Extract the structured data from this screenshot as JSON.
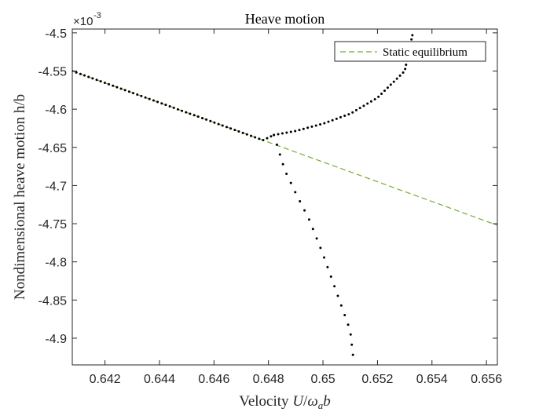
{
  "chart_data": {
    "type": "scatter",
    "title": "Heave motion",
    "xlabel_prefix": "Velocity ",
    "xlabel_math": {
      "U": "U",
      "slash": "/",
      "omega": "ω",
      "sub": "a",
      "b": "b"
    },
    "ylabel": "Nondimensional heave motion h/b",
    "y_exponent": {
      "base": "×10",
      "power": "-3"
    },
    "xlim": [
      0.6408,
      0.6564
    ],
    "ylim": [
      -4.935,
      -4.495
    ],
    "x_ticks": [
      0.642,
      0.644,
      0.646,
      0.648,
      0.65,
      0.652,
      0.654,
      0.656
    ],
    "x_tick_labels": [
      "0.642",
      "0.644",
      "0.646",
      "0.648",
      "0.65",
      "0.652",
      "0.654",
      "0.656"
    ],
    "y_ticks": [
      -4.5,
      -4.55,
      -4.6,
      -4.65,
      -4.7,
      -4.75,
      -4.8,
      -4.85,
      -4.9
    ],
    "y_tick_labels": [
      "-4.5",
      "-4.55",
      "-4.6",
      "-4.65",
      "-4.7",
      "-4.75",
      "-4.8",
      "-4.85",
      "-4.9"
    ],
    "grid": false,
    "legend_position": "top-right",
    "series": [
      {
        "name": "Static equilibrium",
        "style": "dashed",
        "color": "#77ac30",
        "x": [
          0.6408,
          0.6564
        ],
        "y": [
          -4.55,
          -4.752
        ]
      },
      {
        "style": "dotted",
        "color": "#000000",
        "x": [
          0.6408,
          0.6418,
          0.6428,
          0.6438,
          0.6448,
          0.6458,
          0.6468,
          0.6478,
          0.6482
        ],
        "y": [
          -4.55,
          -4.5629,
          -4.5759,
          -4.5888,
          -4.6018,
          -4.6147,
          -4.6277,
          -4.6406,
          -4.6338
        ]
      },
      {
        "style": "dotted",
        "color": "#000000",
        "x": [
          0.6482,
          0.649,
          0.65,
          0.651,
          0.652,
          0.653,
          0.6533
        ],
        "y": [
          -4.6338,
          -4.6285,
          -4.619,
          -4.606,
          -4.585,
          -4.55,
          -4.5
        ]
      },
      {
        "style": "dotted",
        "color": "#000000",
        "x": [
          0.6482,
          0.6486,
          0.649,
          0.6495,
          0.65,
          0.6505,
          0.651,
          0.6511
        ],
        "y": [
          -4.6338,
          -4.68,
          -4.71,
          -4.745,
          -4.79,
          -4.84,
          -4.89,
          -4.922
        ]
      }
    ]
  }
}
